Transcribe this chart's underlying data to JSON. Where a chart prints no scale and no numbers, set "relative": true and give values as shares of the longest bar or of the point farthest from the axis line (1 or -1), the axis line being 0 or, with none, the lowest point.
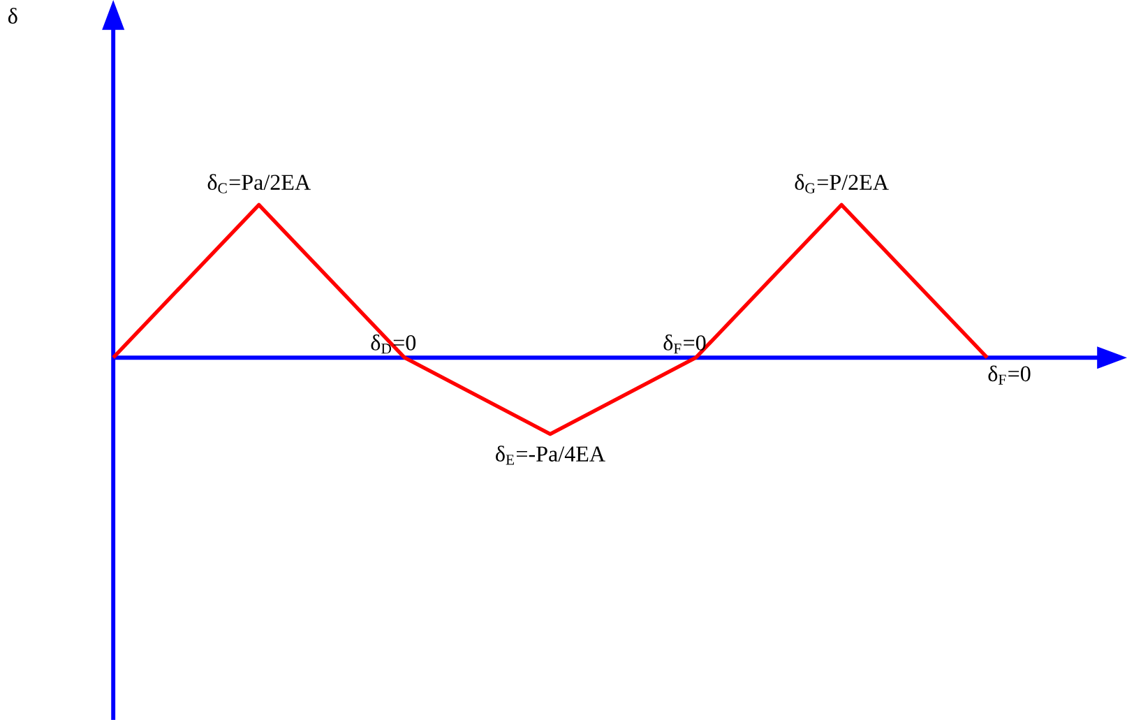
{
  "chart_data": {
    "type": "line",
    "relative": true,
    "categories": [
      null,
      null,
      null,
      null,
      null,
      null,
      null
    ],
    "series": [
      {
        "color": "#ff0000",
        "values": [
          0,
          1,
          0,
          -0.5,
          0,
          1,
          0
        ]
      }
    ],
    "ref_lines": [
      {
        "axis": "y",
        "value": 0,
        "color": "#0000ff"
      }
    ],
    "annotations": [
      "δ",
      {
        "text": "δ$_{C}$=Pa/2EA",
        "y": 1
      },
      {
        "text": "δ$_{D}$=0",
        "y": 0
      },
      {
        "text": "δ$_{E}$=-Pa/4EA",
        "y": -0.5
      },
      {
        "text": "δ$_{F}$=0",
        "y": 0
      },
      {
        "text": "δ$_{G}$=P/2EA",
        "y": 1
      },
      {
        "text": "δ$_{F}$=0",
        "y": 0
      }
    ]
  }
}
